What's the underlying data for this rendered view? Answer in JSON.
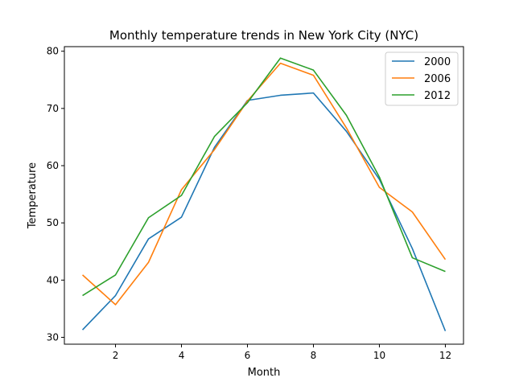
{
  "chart_data": {
    "type": "line",
    "title": "Monthly temperature trends in New York City (NYC)",
    "xlabel": "Month",
    "ylabel": "Temperature",
    "xlim": [
      0.45,
      12.55
    ],
    "ylim": [
      28.8,
      80.8
    ],
    "xticks": [
      2,
      4,
      6,
      8,
      10,
      12
    ],
    "yticks": [
      30,
      40,
      50,
      60,
      70,
      80
    ],
    "grid": false,
    "legend_position": "top-right",
    "x": [
      1,
      2,
      3,
      4,
      5,
      6,
      7,
      8,
      9,
      10,
      11,
      12
    ],
    "series": [
      {
        "name": "2000",
        "color": "#1f77b4",
        "values": [
          31.3,
          37.3,
          47.2,
          51.0,
          63.2,
          71.4,
          72.3,
          72.7,
          66.0,
          57.6,
          45.5,
          31.1
        ]
      },
      {
        "name": "2006",
        "color": "#ff7f0e",
        "values": [
          40.9,
          35.7,
          43.1,
          55.8,
          62.8,
          71.3,
          77.9,
          75.8,
          66.6,
          56.2,
          51.9,
          43.6
        ]
      },
      {
        "name": "2012",
        "color": "#2ca02c",
        "values": [
          37.3,
          40.9,
          50.9,
          54.8,
          65.1,
          71.0,
          78.8,
          76.7,
          68.8,
          58.0,
          43.9,
          41.5
        ]
      }
    ]
  }
}
